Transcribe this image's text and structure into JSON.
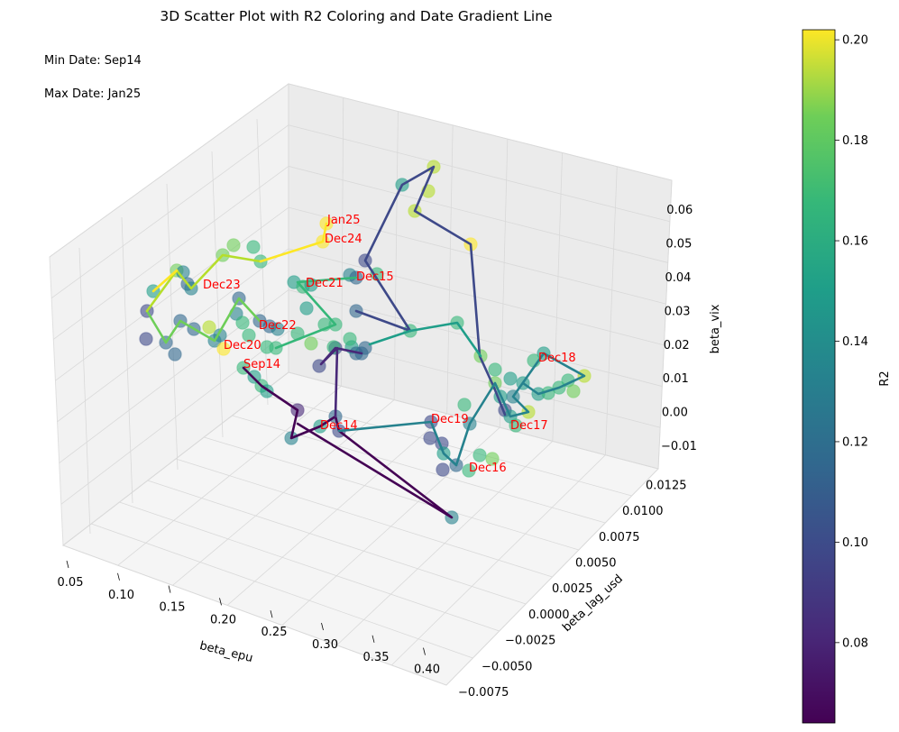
{
  "chart_data": {
    "type": "scatter",
    "title": "3D Scatter Plot with R2 Coloring and Date Gradient Line",
    "annotations": {
      "min_date": "Min Date: Sep14",
      "max_date": "Max Date: Jan25"
    },
    "axes": {
      "x": {
        "label": "beta_epu",
        "ticks": [
          "0.05",
          "0.10",
          "0.15",
          "0.20",
          "0.25",
          "0.30",
          "0.35",
          "0.40"
        ]
      },
      "y": {
        "label": "beta_lag_usd",
        "ticks": [
          "−0.0075",
          "−0.0050",
          "−0.0025",
          "0.0000",
          "0.0025",
          "0.0050",
          "0.0075",
          "0.0100",
          "0.0125"
        ]
      },
      "z": {
        "label": "beta_vix",
        "ticks": [
          "−0.01",
          "0.00",
          "0.01",
          "0.02",
          "0.03",
          "0.04",
          "0.05",
          "0.06"
        ]
      }
    },
    "colorbar": {
      "label": "R2",
      "ticks": [
        "0.08",
        "0.10",
        "0.12",
        "0.14",
        "0.16",
        "0.18",
        "0.20"
      ],
      "range": [
        0.064,
        0.202
      ]
    },
    "labels": [
      {
        "text": "Sep14"
      },
      {
        "text": "Dec14"
      },
      {
        "text": "Dec15"
      },
      {
        "text": "Dec16"
      },
      {
        "text": "Dec17"
      },
      {
        "text": "Dec18"
      },
      {
        "text": "Dec19"
      },
      {
        "text": "Dec20"
      },
      {
        "text": "Dec21"
      },
      {
        "text": "Dec22"
      },
      {
        "text": "Dec23"
      },
      {
        "text": "Dec24"
      },
      {
        "text": "Jan25"
      }
    ],
    "colors": {
      "label": "#ff0000",
      "pane": "#f2f2f2",
      "grid": "#d8d8d8"
    }
  }
}
